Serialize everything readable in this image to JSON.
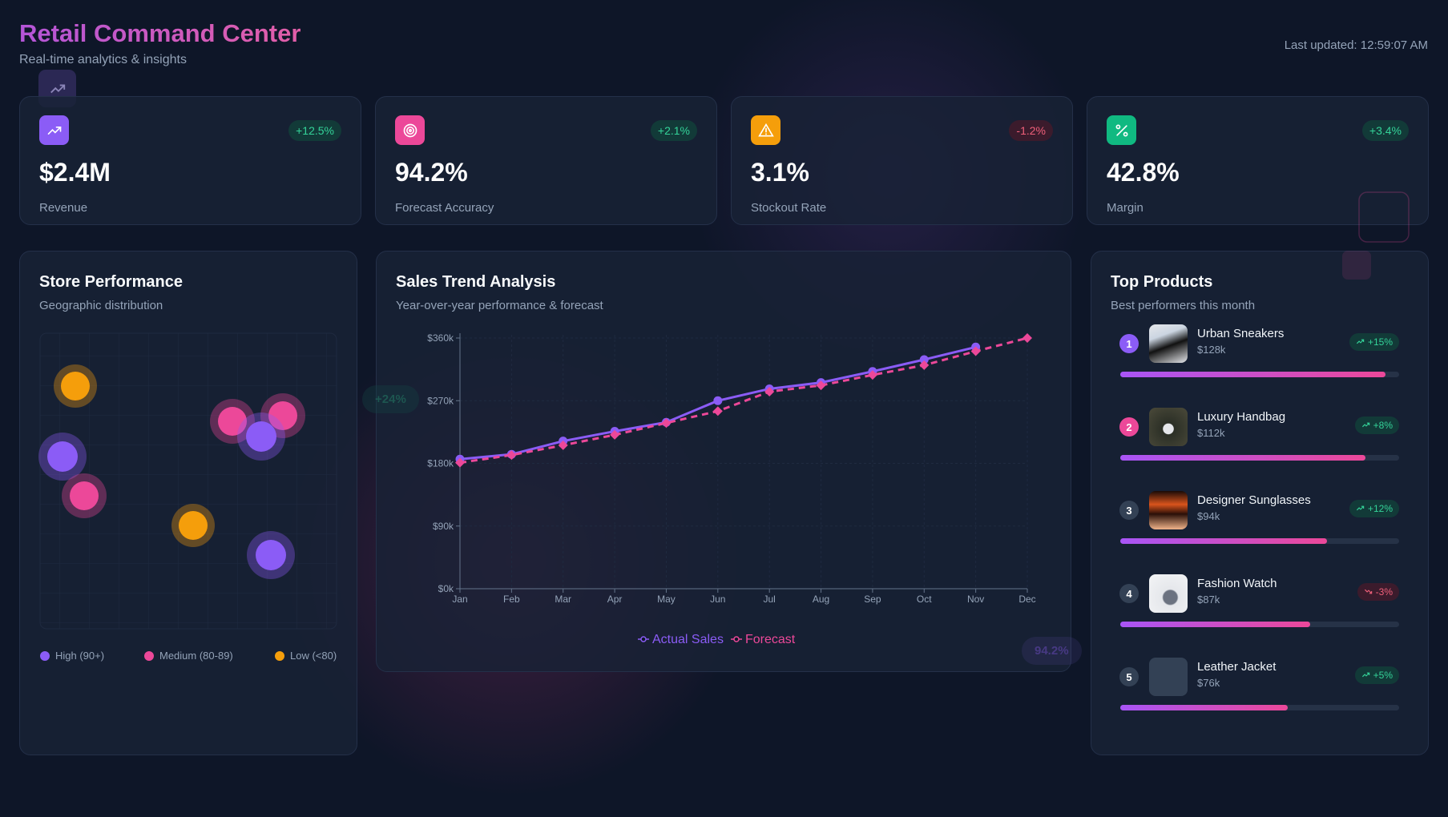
{
  "header": {
    "title": "Retail Command Center",
    "subtitle": "Real-time analytics & insights",
    "updated": "Last updated: 12:59:07 AM"
  },
  "kpis": [
    {
      "value": "$2.4M",
      "label": "Revenue",
      "change": "+12.5%"
    },
    {
      "value": "94.2%",
      "label": "Forecast Accuracy",
      "change": "+2.1%"
    },
    {
      "value": "3.1%",
      "label": "Stockout Rate",
      "change": "-1.2%"
    },
    {
      "value": "42.8%",
      "label": "Margin",
      "change": "+3.4%"
    }
  ],
  "store_performance": {
    "title": "Store Performance",
    "subtitle": "Geographic distribution",
    "legend": [
      {
        "name": "High (90+)",
        "color": "#8b5cf6"
      },
      {
        "name": "Medium (80-89)",
        "color": "#ec4899"
      },
      {
        "name": "Low (<80)",
        "color": "#f59e0b"
      }
    ]
  },
  "chart_data": {
    "type": "line",
    "title": "Sales Trend Analysis",
    "subtitle": "Year-over-year performance & forecast",
    "categories": [
      "Jan",
      "Feb",
      "Mar",
      "Apr",
      "May",
      "Jun",
      "Jul",
      "Aug",
      "Sep",
      "Oct",
      "Nov",
      "Dec"
    ],
    "series": [
      {
        "name": "Actual Sales",
        "color": "#8b5cf6",
        "dashed": false,
        "values": [
          186000,
          193000,
          212000,
          226000,
          239000,
          270000,
          287000,
          296000,
          312000,
          329000,
          347000,
          null
        ]
      },
      {
        "name": "Forecast",
        "color": "#ec4899",
        "dashed": true,
        "values": [
          181000,
          192000,
          206000,
          221000,
          238000,
          255000,
          283000,
          292000,
          307000,
          321000,
          341000,
          360000
        ]
      }
    ],
    "ylim": [
      0,
      360000
    ],
    "yticks": [
      {
        "value": 0,
        "label": "$0k"
      },
      {
        "value": 90000,
        "label": "$90k"
      },
      {
        "value": 180000,
        "label": "$180k"
      },
      {
        "value": 270000,
        "label": "$270k"
      },
      {
        "value": 360000,
        "label": "$360k"
      }
    ],
    "grid": true
  },
  "top_products": {
    "title": "Top Products",
    "subtitle": "Best performers this month",
    "items": [
      {
        "rank": 1,
        "name": "Urban Sneakers",
        "price": "$128k",
        "change": "+15%",
        "progress": 95
      },
      {
        "rank": 2,
        "name": "Luxury Handbag",
        "price": "$112k",
        "change": "+8%",
        "progress": 88
      },
      {
        "rank": 3,
        "name": "Designer Sunglasses",
        "price": "$94k",
        "change": "+12%",
        "progress": 74
      },
      {
        "rank": 4,
        "name": "Fashion Watch",
        "price": "$87k",
        "change": "-3%",
        "progress": 68
      },
      {
        "rank": 5,
        "name": "Leather Jacket",
        "price": "$76k",
        "change": "+5%",
        "progress": 60
      }
    ]
  },
  "floating_badges": [
    "+24%",
    "94.2%"
  ]
}
